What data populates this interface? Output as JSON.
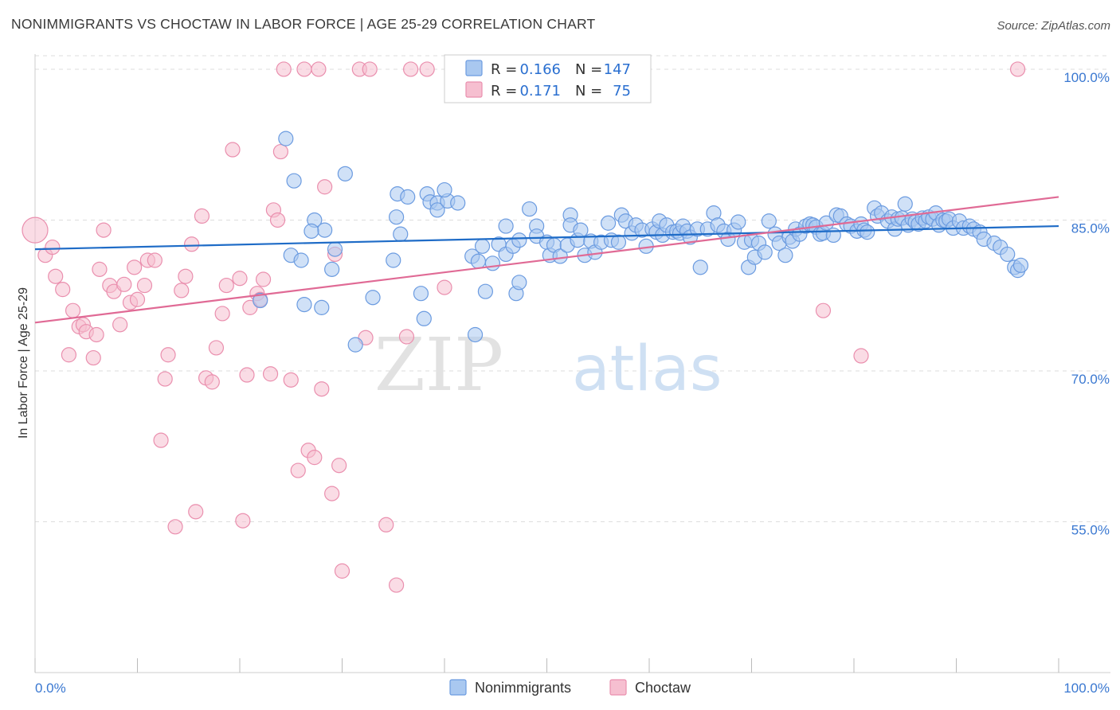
{
  "title": "NONIMMIGRANTS VS CHOCTAW IN LABOR FORCE | AGE 25-29 CORRELATION CHART",
  "source": "Source: ZipAtlas.com",
  "watermark": {
    "zip": "ZIP",
    "atlas": "atlas"
  },
  "colors": {
    "blue_fill": "#a9c8f0",
    "blue_stroke": "#6b9be0",
    "blue_line": "#1f6cc7",
    "pink_fill": "#f6bfd0",
    "pink_stroke": "#ea8fae",
    "pink_line": "#e06a95",
    "tick_label": "#3a78d1",
    "grid": "#dddddd",
    "axis": "#cccccc"
  },
  "legend_box": {
    "rows": [
      {
        "r_label": "R =",
        "r_value": "0.166",
        "n_label": "N =",
        "n_value": "147"
      },
      {
        "r_label": "R =",
        "r_value": "0.171",
        "n_label": "N =",
        "n_value": "75"
      }
    ]
  },
  "bottom_legend": [
    "Nonimmigrants",
    "Choctaw"
  ],
  "chart_data": {
    "type": "scatter",
    "title": "NONIMMIGRANTS VS CHOCTAW IN LABOR FORCE | AGE 25-29 CORRELATION CHART",
    "xlabel": "",
    "ylabel": "In Labor Force | Age 25-29",
    "xlim": [
      0,
      100
    ],
    "ylim": [
      40,
      101.5
    ],
    "x_tick_labels": [
      "0.0%",
      "100.0%"
    ],
    "y_ticks": [
      55,
      70,
      85,
      100
    ],
    "y_tick_labels": [
      "55.0%",
      "70.0%",
      "85.0%",
      "100.0%"
    ],
    "grid": true,
    "legend_position": "top-center",
    "series": [
      {
        "name": "Nonimmigrants",
        "r": 0.166,
        "n": 147,
        "trend": {
          "x": [
            0,
            100
          ],
          "y": [
            82.1,
            84.4
          ]
        },
        "points": [
          [
            24.5,
            93.1
          ],
          [
            25.3,
            88.9
          ],
          [
            30.3,
            89.6
          ],
          [
            35.3,
            85.3
          ],
          [
            35.4,
            87.6
          ],
          [
            35.7,
            83.6
          ],
          [
            36.4,
            87.3
          ],
          [
            38.3,
            87.6
          ],
          [
            38.6,
            86.8
          ],
          [
            39.3,
            86.7
          ],
          [
            39.3,
            86.0
          ],
          [
            40.3,
            86.9
          ],
          [
            40.0,
            88.0
          ],
          [
            41.3,
            86.7
          ],
          [
            27.3,
            85.0
          ],
          [
            28.3,
            84.0
          ],
          [
            27.0,
            83.9
          ],
          [
            25.0,
            81.5
          ],
          [
            26.0,
            81.0
          ],
          [
            29.3,
            82.1
          ],
          [
            29.0,
            80.1
          ],
          [
            35.0,
            81.0
          ],
          [
            26.3,
            76.6
          ],
          [
            28.0,
            76.3
          ],
          [
            22.0,
            77.0
          ],
          [
            33.0,
            77.3
          ],
          [
            37.7,
            77.7
          ],
          [
            38.0,
            75.2
          ],
          [
            31.3,
            72.6
          ],
          [
            43.0,
            73.6
          ],
          [
            44.0,
            77.9
          ],
          [
            47.0,
            77.7
          ],
          [
            47.3,
            78.8
          ],
          [
            42.7,
            81.4
          ],
          [
            43.3,
            80.9
          ],
          [
            44.7,
            80.7
          ],
          [
            43.7,
            82.4
          ],
          [
            45.3,
            82.6
          ],
          [
            46.0,
            84.4
          ],
          [
            46.0,
            81.6
          ],
          [
            46.7,
            82.4
          ],
          [
            47.3,
            83.0
          ],
          [
            48.3,
            86.1
          ],
          [
            49.0,
            84.4
          ],
          [
            49.0,
            83.4
          ],
          [
            50.0,
            82.8
          ],
          [
            50.3,
            81.5
          ],
          [
            50.7,
            82.5
          ],
          [
            51.3,
            81.4
          ],
          [
            52.0,
            82.5
          ],
          [
            52.3,
            85.5
          ],
          [
            52.3,
            84.5
          ],
          [
            53.0,
            83.0
          ],
          [
            53.3,
            84.0
          ],
          [
            53.7,
            81.5
          ],
          [
            54.3,
            82.9
          ],
          [
            54.7,
            81.8
          ],
          [
            55.3,
            82.8
          ],
          [
            56.0,
            84.7
          ],
          [
            56.3,
            83.0
          ],
          [
            57.0,
            82.8
          ],
          [
            57.3,
            85.5
          ],
          [
            57.7,
            84.9
          ],
          [
            58.3,
            83.7
          ],
          [
            58.7,
            84.5
          ],
          [
            59.3,
            84.0
          ],
          [
            59.7,
            82.4
          ],
          [
            60.3,
            84.1
          ],
          [
            60.7,
            83.8
          ],
          [
            61.0,
            84.9
          ],
          [
            61.3,
            83.5
          ],
          [
            61.7,
            84.5
          ],
          [
            62.3,
            83.8
          ],
          [
            62.7,
            83.9
          ],
          [
            63.0,
            83.7
          ],
          [
            63.3,
            84.4
          ],
          [
            63.7,
            83.9
          ],
          [
            64.0,
            83.3
          ],
          [
            64.7,
            84.1
          ],
          [
            65.0,
            80.3
          ],
          [
            65.7,
            84.1
          ],
          [
            66.3,
            85.7
          ],
          [
            66.7,
            84.5
          ],
          [
            67.3,
            83.9
          ],
          [
            67.7,
            83.1
          ],
          [
            68.3,
            84.0
          ],
          [
            68.7,
            84.8
          ],
          [
            69.3,
            82.8
          ],
          [
            69.7,
            80.3
          ],
          [
            70.0,
            83.0
          ],
          [
            70.3,
            81.3
          ],
          [
            70.7,
            82.7
          ],
          [
            71.3,
            81.8
          ],
          [
            71.7,
            84.9
          ],
          [
            72.3,
            83.6
          ],
          [
            72.7,
            82.7
          ],
          [
            73.3,
            81.5
          ],
          [
            73.7,
            83.3
          ],
          [
            74.0,
            82.9
          ],
          [
            74.3,
            84.1
          ],
          [
            74.7,
            83.6
          ],
          [
            75.3,
            84.4
          ],
          [
            75.7,
            84.6
          ],
          [
            76.0,
            84.5
          ],
          [
            76.3,
            84.3
          ],
          [
            76.7,
            83.6
          ],
          [
            77.0,
            83.7
          ],
          [
            77.3,
            84.7
          ],
          [
            78.0,
            83.5
          ],
          [
            78.3,
            85.5
          ],
          [
            78.7,
            85.4
          ],
          [
            79.3,
            84.6
          ],
          [
            79.7,
            84.4
          ],
          [
            80.3,
            83.9
          ],
          [
            80.7,
            84.6
          ],
          [
            81.0,
            84.0
          ],
          [
            81.3,
            83.8
          ],
          [
            82.0,
            86.2
          ],
          [
            82.3,
            85.4
          ],
          [
            82.7,
            85.7
          ],
          [
            83.3,
            84.9
          ],
          [
            83.7,
            85.3
          ],
          [
            84.0,
            84.1
          ],
          [
            84.3,
            85.1
          ],
          [
            84.7,
            85.2
          ],
          [
            85.0,
            86.6
          ],
          [
            85.3,
            84.5
          ],
          [
            85.7,
            85.1
          ],
          [
            86.0,
            84.8
          ],
          [
            86.3,
            84.6
          ],
          [
            86.7,
            85.2
          ],
          [
            87.0,
            84.9
          ],
          [
            87.3,
            85.3
          ],
          [
            87.7,
            85.1
          ],
          [
            88.0,
            85.7
          ],
          [
            88.3,
            84.5
          ],
          [
            88.7,
            85.0
          ],
          [
            89.0,
            84.9
          ],
          [
            89.3,
            85.1
          ],
          [
            89.7,
            84.2
          ],
          [
            90.3,
            84.9
          ],
          [
            90.7,
            84.2
          ],
          [
            91.3,
            84.4
          ],
          [
            91.7,
            84.1
          ],
          [
            92.3,
            83.8
          ],
          [
            92.7,
            83.1
          ],
          [
            93.7,
            82.7
          ],
          [
            94.3,
            82.3
          ],
          [
            95.0,
            81.6
          ],
          [
            95.7,
            80.3
          ],
          [
            96.0,
            80.0
          ],
          [
            96.3,
            80.5
          ]
        ]
      },
      {
        "name": "Choctaw",
        "r": 0.171,
        "n": 75,
        "trend": {
          "x": [
            0,
            100
          ],
          "y": [
            74.8,
            87.3
          ]
        },
        "points": [
          [
            0,
            84.0
          ],
          [
            1.0,
            81.5
          ],
          [
            2.0,
            79.4
          ],
          [
            2.7,
            78.1
          ],
          [
            3.3,
            71.6
          ],
          [
            3.7,
            76.0
          ],
          [
            4.3,
            74.4
          ],
          [
            4.7,
            74.6
          ],
          [
            5.0,
            73.9
          ],
          [
            5.7,
            71.3
          ],
          [
            6.3,
            80.1
          ],
          [
            6.7,
            84.0
          ],
          [
            7.3,
            78.5
          ],
          [
            7.7,
            77.9
          ],
          [
            8.3,
            74.6
          ],
          [
            8.7,
            78.6
          ],
          [
            9.3,
            76.8
          ],
          [
            9.7,
            80.3
          ],
          [
            10.0,
            77.1
          ],
          [
            10.7,
            78.5
          ],
          [
            11.0,
            81.0
          ],
          [
            11.7,
            81.0
          ],
          [
            12.3,
            63.1
          ],
          [
            12.7,
            69.2
          ],
          [
            13.0,
            71.6
          ],
          [
            13.7,
            54.5
          ],
          [
            14.3,
            78.0
          ],
          [
            14.7,
            79.4
          ],
          [
            15.3,
            82.6
          ],
          [
            15.7,
            56.0
          ],
          [
            16.3,
            85.4
          ],
          [
            16.7,
            69.3
          ],
          [
            17.3,
            68.9
          ],
          [
            17.7,
            72.3
          ],
          [
            18.3,
            75.7
          ],
          [
            18.7,
            78.5
          ],
          [
            19.3,
            92.0
          ],
          [
            20.0,
            79.2
          ],
          [
            20.3,
            55.1
          ],
          [
            20.7,
            69.6
          ],
          [
            21.0,
            76.3
          ],
          [
            21.7,
            77.7
          ],
          [
            22.0,
            77.1
          ],
          [
            22.3,
            79.1
          ],
          [
            23.0,
            69.7
          ],
          [
            23.3,
            86.0
          ],
          [
            23.7,
            85.0
          ],
          [
            24.0,
            91.8
          ],
          [
            24.3,
            100
          ],
          [
            25.0,
            69.1
          ],
          [
            25.7,
            60.1
          ],
          [
            26.3,
            100
          ],
          [
            26.7,
            62.1
          ],
          [
            27.3,
            61.4
          ],
          [
            27.7,
            100
          ],
          [
            28.0,
            68.2
          ],
          [
            28.3,
            88.3
          ],
          [
            29.0,
            57.8
          ],
          [
            29.3,
            81.6
          ],
          [
            29.7,
            60.6
          ],
          [
            30.0,
            50.1
          ],
          [
            31.7,
            100
          ],
          [
            32.3,
            73.3
          ],
          [
            32.7,
            100
          ],
          [
            34.3,
            54.7
          ],
          [
            35.3,
            48.7
          ],
          [
            36.3,
            73.4
          ],
          [
            36.7,
            100
          ],
          [
            38.3,
            100
          ],
          [
            40.0,
            78.3
          ],
          [
            77.0,
            76.0
          ],
          [
            80.7,
            71.5
          ],
          [
            96.0,
            100
          ],
          [
            1.7,
            82.3
          ],
          [
            6.0,
            73.6
          ]
        ]
      }
    ]
  }
}
